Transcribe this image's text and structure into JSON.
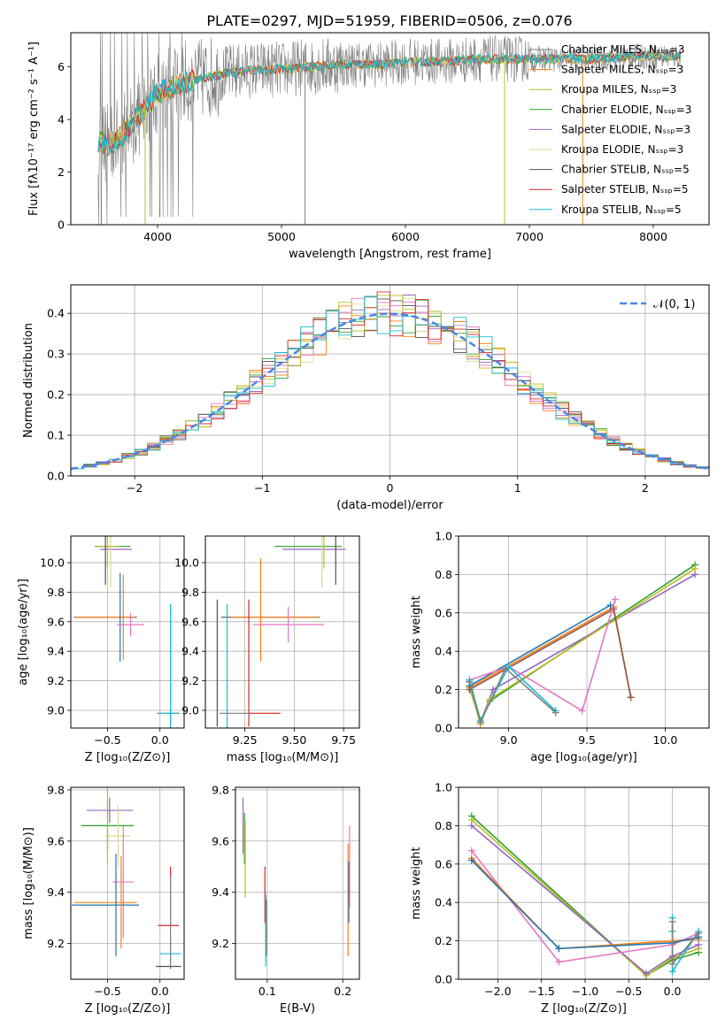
{
  "figure_title": "PLATE=0297, MJD=51959, FIBERID=0506, z=0.076",
  "colors": {
    "series": [
      "#7f7f7f",
      "#ff7f0e",
      "#bcbd22",
      "#2ca02c",
      "#9467bd",
      "#dbdb8d",
      "#505050",
      "#d62728",
      "#17becf",
      "#e377c2",
      "#1f77b4",
      "#8c564b"
    ],
    "gauss": "#4a86e8",
    "grid": "#b0b0b0"
  },
  "chart_data": [
    {
      "id": "spectrum",
      "type": "line",
      "title": "PLATE=0297, MJD=51959, FIBERID=0506, z=0.076",
      "xlabel": "wavelength [Angstrom, rest frame]",
      "ylabel": "Flux [fλ10⁻¹⁷ erg cm⁻² s⁻¹ A⁻¹]",
      "xlim": [
        3300,
        8450
      ],
      "ylim": [
        0,
        7.3
      ],
      "xticks": [
        4000,
        5000,
        6000,
        7000,
        8000
      ],
      "yticks": [
        0,
        2,
        4,
        6
      ],
      "grid": false,
      "legend_position": "top-right",
      "legend": [
        "Chabrier MILES, Nₛₛₚ=3",
        "Salpeter MILES, Nₛₛₚ=3",
        "Kroupa MILES, Nₛₛₚ=3",
        "Chabrier ELODIE, Nₛₛₚ=3",
        "Salpeter ELODIE, Nₛₛₚ=3",
        "Kroupa ELODIE, Nₛₛₚ=3",
        "Chabrier STELIB, Nₛₛₚ=5",
        "Salpeter STELIB, Nₛₛₚ=5",
        "Kroupa STELIB, Nₛₛₚ=5"
      ],
      "legend_colors": [
        "#7f7f7f",
        "#ff7f0e",
        "#bcbd22",
        "#2ca02c",
        "#9467bd",
        "#dbdb8d",
        "#505050",
        "#d62728",
        "#17becf"
      ],
      "continuum": {
        "x": [
          3520,
          3600,
          3700,
          3800,
          3900,
          4000,
          4100,
          4200,
          4300,
          4400,
          4500,
          4600,
          4800,
          5000,
          5200,
          5500,
          5800,
          6000,
          6300,
          6600,
          6800,
          7000,
          7300,
          7500,
          7800,
          8000,
          8200
        ],
        "y": [
          3.2,
          3.0,
          3.3,
          3.9,
          4.4,
          5.0,
          5.2,
          5.4,
          5.5,
          5.6,
          5.7,
          5.8,
          5.9,
          5.9,
          6.0,
          6.1,
          6.1,
          6.2,
          6.2,
          6.3,
          6.3,
          6.3,
          6.3,
          6.3,
          6.4,
          6.4,
          6.4
        ]
      },
      "spike_drops": [
        {
          "x": 3900,
          "color": "#bcbd22"
        },
        {
          "x": 5190,
          "color": "#7f7f7f"
        },
        {
          "x": 6800,
          "color": "#bcbd22"
        },
        {
          "x": 7430,
          "color": "#ff7f0e"
        }
      ]
    },
    {
      "id": "residuals",
      "type": "step",
      "xlabel": "(data-model)/error",
      "ylabel": "Normed distribution",
      "xlim": [
        -2.5,
        2.5
      ],
      "ylim": [
        0,
        0.47
      ],
      "xticks": [
        -2,
        -1,
        0,
        1,
        2
      ],
      "xtick_labels": [
        "−2",
        "−1",
        "0",
        "1",
        "2"
      ],
      "yticks": [
        0.0,
        0.1,
        0.2,
        0.3,
        0.4
      ],
      "ytick_labels": [
        "0.0",
        "0.1",
        "0.2",
        "0.3",
        "0.4"
      ],
      "grid": true,
      "legend_position": "top-right",
      "gauss_label": "𝒩(0, 1)",
      "bins": 50
    },
    {
      "id": "age-vs-Z",
      "type": "errorbar",
      "xlabel": "Z [log₁₀(Z/Z⊙)]",
      "ylabel": "age  [log₁₀(age/yr)]",
      "xlim": [
        -0.85,
        0.23
      ],
      "ylim": [
        8.88,
        10.18
      ],
      "xticks": [
        -0.5,
        0.0
      ],
      "xtick_labels": [
        "−0.5",
        "0.0"
      ],
      "yticks": [
        9.0,
        9.2,
        9.4,
        9.6,
        9.8,
        10.0
      ],
      "ytick_labels": [
        "9.0",
        "9.2",
        "9.4",
        "9.6",
        "9.8",
        "10.0"
      ],
      "grid": true,
      "points": [
        {
          "x": -0.45,
          "y": 10.11,
          "xerr": 0.17,
          "yerr": 0.0,
          "c": "#2ca02c"
        },
        {
          "x": -0.42,
          "y": 10.09,
          "xerr": 0.15,
          "yerr": 0.0,
          "c": "#9467bd"
        },
        {
          "x": -0.5,
          "y": 10.11,
          "xerr": 0.1,
          "yerr": 0.15,
          "c": "#bcbd22"
        },
        {
          "x": -0.52,
          "y": 10.08,
          "xerr": 0.0,
          "yerr": 0.23,
          "c": "#505050"
        },
        {
          "x": -0.47,
          "y": 10.05,
          "xerr": 0.0,
          "yerr": 0.22,
          "c": "#dbdb8d"
        },
        {
          "x": -0.52,
          "y": 9.63,
          "xerr": 0.3,
          "yerr": 0.0,
          "c": "#505050"
        },
        {
          "x": -0.52,
          "y": 9.63,
          "xerr": 0.28,
          "yerr": 0.0,
          "c": "#ff7f0e"
        },
        {
          "x": -0.38,
          "y": 9.63,
          "xerr": 0.0,
          "yerr": 0.3,
          "c": "#1f77b4"
        },
        {
          "x": -0.35,
          "y": 9.63,
          "xerr": 0.0,
          "yerr": 0.29,
          "c": "#ff7f0e"
        },
        {
          "x": -0.28,
          "y": 9.58,
          "xerr": 0.13,
          "yerr": 0.08,
          "c": "#e377c2"
        },
        {
          "x": 0.1,
          "y": 9.3,
          "xerr": 0.0,
          "yerr": 0.42,
          "c": "#d62728"
        },
        {
          "x": 0.1,
          "y": 9.3,
          "xerr": 0.0,
          "yerr": 0.42,
          "c": "#17becf"
        },
        {
          "x": 0.08,
          "y": 8.98,
          "xerr": 0.11,
          "yerr": 0.0,
          "c": "#7f7f7f"
        },
        {
          "x": 0.08,
          "y": 8.98,
          "xerr": 0.09,
          "yerr": 0.0,
          "c": "#17becf"
        }
      ]
    },
    {
      "id": "age-vs-mass",
      "type": "errorbar",
      "xlabel": "mass [log₁₀(M/M⊙)]",
      "ylabel": "",
      "xlim": [
        9.05,
        9.83
      ],
      "ylim": [
        8.88,
        10.18
      ],
      "xticks": [
        9.25,
        9.5,
        9.75
      ],
      "xtick_labels": [
        "9.25",
        "9.50",
        "9.75"
      ],
      "yticks": [
        9.0,
        9.2,
        9.4,
        9.6,
        9.8,
        10.0
      ],
      "ytick_labels": [
        "9.0",
        "9.2",
        "9.4",
        "9.6",
        "9.8",
        "10.0"
      ],
      "grid": true,
      "points": [
        {
          "x": 9.57,
          "y": 10.11,
          "xerr": 0.17,
          "yerr": 0.0,
          "c": "#2ca02c"
        },
        {
          "x": 9.6,
          "y": 10.09,
          "xerr": 0.16,
          "yerr": 0.0,
          "c": "#9467bd"
        },
        {
          "x": 9.65,
          "y": 10.11,
          "xerr": 0.0,
          "yerr": 0.15,
          "c": "#bcbd22"
        },
        {
          "x": 9.64,
          "y": 10.05,
          "xerr": 0.0,
          "yerr": 0.22,
          "c": "#dbdb8d"
        },
        {
          "x": 9.71,
          "y": 10.08,
          "xerr": 0.0,
          "yerr": 0.23,
          "c": "#505050"
        },
        {
          "x": 9.38,
          "y": 9.63,
          "xerr": 0.25,
          "yerr": 0.0,
          "c": "#505050"
        },
        {
          "x": 9.4,
          "y": 9.63,
          "xerr": 0.22,
          "yerr": 0.0,
          "c": "#ff7f0e"
        },
        {
          "x": 9.33,
          "y": 9.68,
          "xerr": 0.0,
          "yerr": 0.35,
          "c": "#ff7f0e"
        },
        {
          "x": 9.47,
          "y": 9.58,
          "xerr": 0.18,
          "yerr": 0.12,
          "c": "#e377c2"
        },
        {
          "x": 9.11,
          "y": 9.32,
          "xerr": 0.0,
          "yerr": 0.43,
          "c": "#505050"
        },
        {
          "x": 9.16,
          "y": 9.3,
          "xerr": 0.0,
          "yerr": 0.42,
          "c": "#17becf"
        },
        {
          "x": 9.27,
          "y": 9.32,
          "xerr": 0.0,
          "yerr": 0.43,
          "c": "#d62728"
        },
        {
          "x": 9.2,
          "y": 8.98,
          "xerr": 0.08,
          "yerr": 0.0,
          "c": "#7f7f7f"
        },
        {
          "x": 9.35,
          "y": 8.98,
          "xerr": 0.08,
          "yerr": 0.0,
          "c": "#d62728"
        }
      ]
    },
    {
      "id": "weight-vs-age",
      "type": "line",
      "xlabel": "age  [log₁₀(age/yr)]",
      "ylabel": "mass weight",
      "xlim": [
        8.68,
        10.28
      ],
      "ylim": [
        0,
        1.0
      ],
      "xticks": [
        9.0,
        9.5,
        10.0
      ],
      "xtick_labels": [
        "9.0",
        "9.5",
        "10.0"
      ],
      "yticks": [
        0.0,
        0.2,
        0.4,
        0.6,
        0.8,
        1.0
      ],
      "ytick_labels": [
        "0.0",
        "0.2",
        "0.4",
        "0.6",
        "0.8",
        "1.0"
      ],
      "grid": true,
      "series": [
        {
          "c": "#2ca02c",
          "x": [
            8.75,
            8.82,
            8.88,
            10.19
          ],
          "y": [
            0.21,
            0.03,
            0.14,
            0.85
          ]
        },
        {
          "c": "#9467bd",
          "x": [
            8.75,
            8.82,
            8.9,
            10.19
          ],
          "y": [
            0.24,
            0.03,
            0.2,
            0.8
          ]
        },
        {
          "c": "#bcbd22",
          "x": [
            8.75,
            8.82,
            8.88,
            10.19
          ],
          "y": [
            0.22,
            0.02,
            0.15,
            0.83
          ]
        },
        {
          "c": "#ff7f0e",
          "x": [
            8.75,
            9.67,
            9.78
          ],
          "y": [
            0.21,
            0.63,
            0.16
          ]
        },
        {
          "c": "#8c564b",
          "x": [
            8.75,
            9.67,
            9.78
          ],
          "y": [
            0.2,
            0.62,
            0.16
          ]
        },
        {
          "c": "#1f77b4",
          "x": [
            8.75,
            9.65
          ],
          "y": [
            0.22,
            0.64
          ]
        },
        {
          "c": "#e377c2",
          "x": [
            8.75,
            9.0,
            9.47,
            9.68
          ],
          "y": [
            0.25,
            0.32,
            0.09,
            0.67
          ]
        },
        {
          "c": "#17becf",
          "x": [
            8.75,
            8.82,
            9.0,
            9.3
          ],
          "y": [
            0.25,
            0.04,
            0.32,
            0.09
          ]
        },
        {
          "c": "#7f7f7f",
          "x": [
            8.75,
            8.82,
            8.98,
            9.3
          ],
          "y": [
            0.24,
            0.03,
            0.31,
            0.08
          ]
        }
      ]
    },
    {
      "id": "mass-vs-Z",
      "type": "errorbar",
      "xlabel": "Z [log₁₀(Z/Z⊙)]",
      "ylabel": "mass [log₁₀(M/M⊙)]",
      "xlim": [
        -0.85,
        0.23
      ],
      "ylim": [
        9.06,
        9.81
      ],
      "xticks": [
        -0.5,
        0.0
      ],
      "xtick_labels": [
        "−0.5",
        "0.0"
      ],
      "yticks": [
        9.2,
        9.4,
        9.6,
        9.8
      ],
      "ytick_labels": [
        "9.2",
        "9.4",
        "9.6",
        "9.8"
      ],
      "grid": true,
      "points": [
        {
          "x": -0.48,
          "y": 9.72,
          "xerr": 0.22,
          "yerr": 0.05,
          "c": "#9467bd"
        },
        {
          "x": -0.5,
          "y": 9.66,
          "xerr": 0.25,
          "yerr": 0.1,
          "c": "#2ca02c"
        },
        {
          "x": -0.4,
          "y": 9.62,
          "xerr": 0.12,
          "yerr": 0.12,
          "c": "#dbdb8d"
        },
        {
          "x": -0.5,
          "y": 9.66,
          "xerr": 0.0,
          "yerr": 0.15,
          "c": "#bcbd22"
        },
        {
          "x": -0.35,
          "y": 9.44,
          "xerr": 0.1,
          "yerr": 0.22,
          "c": "#e377c2"
        },
        {
          "x": -0.52,
          "y": 9.36,
          "xerr": 0.3,
          "yerr": 0.0,
          "c": "#ff7f0e"
        },
        {
          "x": -0.52,
          "y": 9.35,
          "xerr": 0.32,
          "yerr": 0.0,
          "c": "#1f77b4"
        },
        {
          "x": -0.42,
          "y": 9.35,
          "xerr": 0.0,
          "yerr": 0.2,
          "c": "#1f77b4"
        },
        {
          "x": -0.37,
          "y": 9.36,
          "xerr": 0.0,
          "yerr": 0.18,
          "c": "#ff7f0e"
        },
        {
          "x": 0.08,
          "y": 9.27,
          "xerr": 0.1,
          "yerr": 0.0,
          "c": "#d62728"
        },
        {
          "x": 0.1,
          "y": 9.38,
          "xerr": 0.0,
          "yerr": 0.12,
          "c": "#d62728"
        },
        {
          "x": 0.1,
          "y": 9.16,
          "xerr": 0.1,
          "yerr": 0.06,
          "c": "#17becf"
        },
        {
          "x": 0.08,
          "y": 9.11,
          "xerr": 0.12,
          "yerr": 0.0,
          "c": "#505050"
        },
        {
          "x": 0.1,
          "y": 9.28,
          "xerr": 0.0,
          "yerr": 0.18,
          "c": "#7f7f7f"
        }
      ]
    },
    {
      "id": "mass-vs-EBV",
      "type": "errorbar",
      "xlabel": "E(B-V)",
      "ylabel": "",
      "xlim": [
        0.058,
        0.222
      ],
      "ylim": [
        9.06,
        9.81
      ],
      "xticks": [
        0.1,
        0.2
      ],
      "xtick_labels": [
        "0.1",
        "0.2"
      ],
      "yticks": [
        9.2,
        9.4,
        9.6,
        9.8
      ],
      "ytick_labels": [
        "9.2",
        "9.4",
        "9.6",
        "9.8"
      ],
      "grid": true,
      "points": [
        {
          "x": 0.068,
          "y": 9.66,
          "xerr": 0.0,
          "yerr": 0.11,
          "c": "#9467bd"
        },
        {
          "x": 0.07,
          "y": 9.61,
          "xerr": 0.0,
          "yerr": 0.1,
          "c": "#2ca02c"
        },
        {
          "x": 0.071,
          "y": 9.53,
          "xerr": 0.0,
          "yerr": 0.15,
          "c": "#bcbd22"
        },
        {
          "x": 0.097,
          "y": 9.39,
          "xerr": 0.0,
          "yerr": 0.11,
          "c": "#d62728"
        },
        {
          "x": 0.098,
          "y": 9.25,
          "xerr": 0.0,
          "yerr": 0.14,
          "c": "#17becf"
        },
        {
          "x": 0.099,
          "y": 9.26,
          "xerr": 0.0,
          "yerr": 0.11,
          "c": "#7f7f7f"
        },
        {
          "x": 0.207,
          "y": 9.37,
          "xerr": 0.0,
          "yerr": 0.22,
          "c": "#ff7f0e"
        },
        {
          "x": 0.209,
          "y": 9.5,
          "xerr": 0.0,
          "yerr": 0.16,
          "c": "#e377c2"
        },
        {
          "x": 0.208,
          "y": 9.4,
          "xerr": 0.0,
          "yerr": 0.12,
          "c": "#1f77b4"
        }
      ]
    },
    {
      "id": "weight-vs-Z",
      "type": "line",
      "xlabel": "Z [log₁₀(Z/Z⊙)]",
      "ylabel": "mass weight",
      "xlim": [
        -2.45,
        0.42
      ],
      "ylim": [
        0,
        1.0
      ],
      "xticks": [
        -2.0,
        -1.5,
        -1.0,
        -0.5,
        0.0
      ],
      "xtick_labels": [
        "−2.0",
        "−1.5",
        "−1.0",
        "−0.5",
        "0.0"
      ],
      "yticks": [
        0.0,
        0.2,
        0.4,
        0.6,
        0.8,
        1.0
      ],
      "ytick_labels": [
        "0.0",
        "0.2",
        "0.4",
        "0.6",
        "0.8",
        "1.0"
      ],
      "grid": true,
      "series": [
        {
          "c": "#2ca02c",
          "x": [
            -2.3,
            -0.3,
            0.0,
            0.3
          ],
          "y": [
            0.85,
            0.02,
            0.1,
            0.14
          ]
        },
        {
          "c": "#bcbd22",
          "x": [
            -2.3,
            -0.3,
            0.0,
            0.3
          ],
          "y": [
            0.83,
            0.02,
            0.11,
            0.16
          ]
        },
        {
          "c": "#9467bd",
          "x": [
            -2.3,
            -0.3,
            0.0,
            0.3
          ],
          "y": [
            0.8,
            0.03,
            0.12,
            0.18
          ]
        },
        {
          "c": "#e377c2",
          "x": [
            -2.3,
            -1.3,
            0.0,
            0.3
          ],
          "y": [
            0.67,
            0.09,
            0.18,
            0.24
          ]
        },
        {
          "c": "#ff7f0e",
          "x": [
            -2.3,
            -1.3,
            0.0,
            0.3
          ],
          "y": [
            0.63,
            0.16,
            0.2,
            0.21
          ]
        },
        {
          "c": "#1f77b4",
          "x": [
            -2.3,
            -1.3,
            0.0,
            0.3
          ],
          "y": [
            0.62,
            0.16,
            0.19,
            0.22
          ]
        },
        {
          "c": "#17becf",
          "x": [
            0.0,
            0.0,
            0.0,
            0.3
          ],
          "y": [
            0.32,
            0.25,
            0.04,
            0.25
          ]
        },
        {
          "c": "#7f7f7f",
          "x": [
            0.0,
            0.0,
            0.3
          ],
          "y": [
            0.3,
            0.08,
            0.24
          ]
        }
      ]
    }
  ]
}
